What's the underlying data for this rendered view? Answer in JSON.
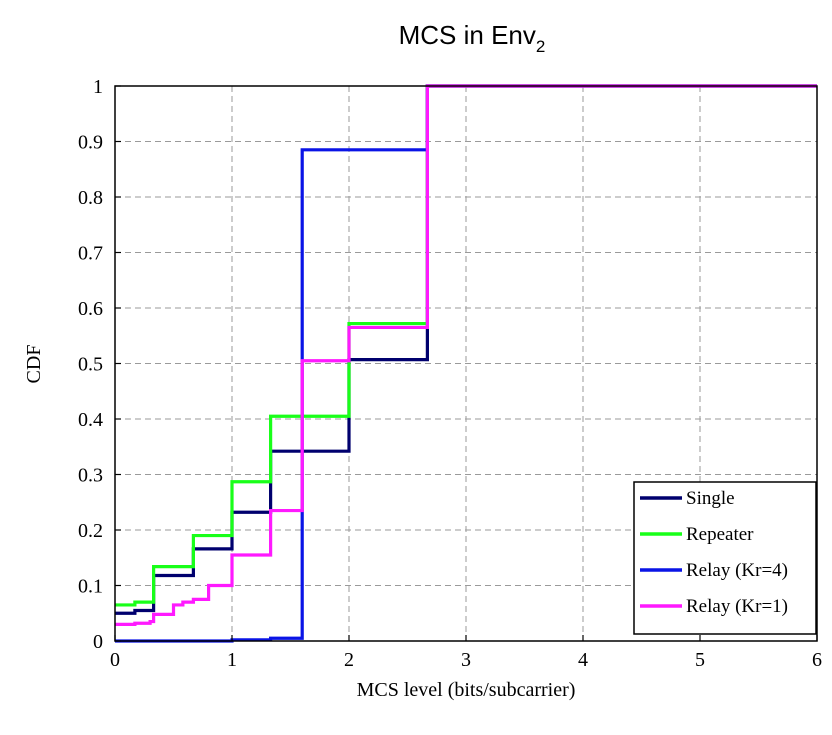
{
  "chart_data": {
    "type": "line",
    "step": true,
    "title": "MCS in Env",
    "title_subscript": "2",
    "xlabel": "MCS level (bits/subcarrier)",
    "ylabel": "CDF",
    "xlim": [
      0,
      6
    ],
    "ylim": [
      0,
      1
    ],
    "xticks": [
      "0",
      "1",
      "2",
      "3",
      "4",
      "5",
      "6"
    ],
    "yticks": [
      "0",
      "0.1",
      "0.2",
      "0.3",
      "0.4",
      "0.5",
      "0.6",
      "0.7",
      "0.8",
      "0.9",
      "1"
    ],
    "grid": true,
    "legend_position": "bottom-right",
    "series": [
      {
        "name": "Single",
        "color": "#00006e",
        "x": [
          0,
          0.17,
          0.33,
          0.67,
          1.0,
          1.33,
          2.0,
          2.67,
          6.0
        ],
        "y": [
          0.05,
          0.055,
          0.118,
          0.166,
          0.232,
          0.342,
          0.507,
          1.0,
          1.0
        ]
      },
      {
        "name": "Repeater",
        "color": "#19ff19",
        "x": [
          0,
          0.17,
          0.33,
          0.67,
          1.0,
          1.33,
          2.0,
          2.67,
          6.0
        ],
        "y": [
          0.065,
          0.07,
          0.134,
          0.19,
          0.287,
          0.405,
          0.572,
          1.0,
          1.0
        ]
      },
      {
        "name": "Relay (Kr=4)",
        "color": "#0a14e6",
        "x": [
          0,
          1.0,
          1.33,
          1.6,
          2.67,
          6.0
        ],
        "y": [
          0.0,
          0.002,
          0.005,
          0.885,
          1.0,
          1.0
        ]
      },
      {
        "name": "Relay (Kr=1)",
        "color": "#ff19ff",
        "x": [
          0,
          0.17,
          0.3,
          0.33,
          0.5,
          0.58,
          0.67,
          0.8,
          1.0,
          1.33,
          1.6,
          2.0,
          2.67,
          6.0
        ],
        "y": [
          0.03,
          0.032,
          0.035,
          0.048,
          0.065,
          0.07,
          0.075,
          0.1,
          0.155,
          0.235,
          0.505,
          0.565,
          1.0,
          1.0
        ]
      }
    ]
  }
}
